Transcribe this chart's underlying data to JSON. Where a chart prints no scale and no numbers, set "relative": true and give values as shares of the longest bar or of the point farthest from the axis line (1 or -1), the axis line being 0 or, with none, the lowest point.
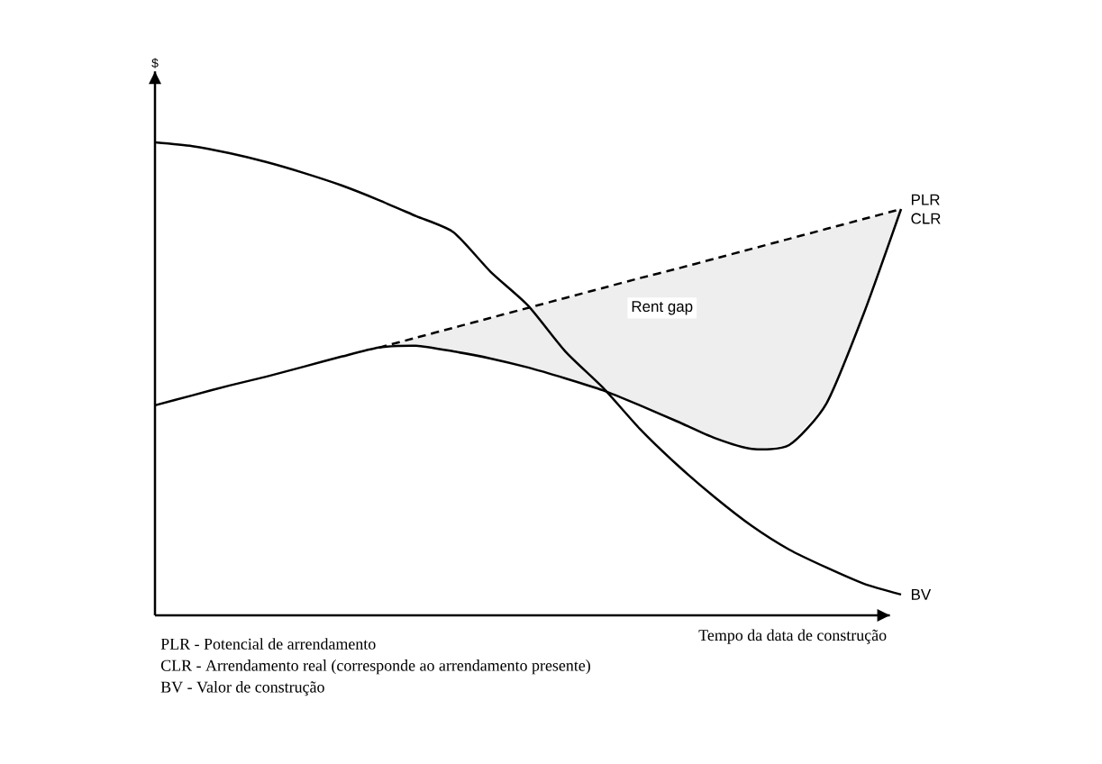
{
  "chart_data": {
    "type": "line",
    "relative": true,
    "xlabel": "Tempo da data de construção",
    "categories": [
      null,
      null,
      null,
      null,
      null,
      null,
      null,
      null,
      null,
      null,
      null,
      null,
      null,
      null,
      null,
      null,
      null,
      null,
      null,
      null,
      null
    ],
    "series": [
      {
        "name": "BV",
        "color": "#000000",
        "line_style": "solid",
        "values": [
          1.0,
          0.992,
          0.977,
          0.958,
          0.935,
          0.909,
          0.878,
          0.844,
          0.81,
          0.726,
          0.655,
          0.558,
          0.482,
          0.394,
          0.318,
          0.25,
          0.189,
          0.139,
          0.101,
          0.067,
          0.044
        ]
      },
      {
        "name": "CLR",
        "color": "#000000",
        "line_style": "solid",
        "values": [
          0.444,
          0.465,
          0.486,
          0.505,
          0.526,
          0.547,
          0.566,
          0.57,
          0.558,
          0.543,
          0.524,
          0.501,
          0.476,
          0.444,
          0.41,
          0.375,
          0.352,
          0.36,
          0.448,
          0.638,
          0.859
        ]
      },
      {
        "name": "PLR",
        "color": "#000000",
        "line_style": "dashed",
        "values": [
          null,
          null,
          null,
          null,
          null,
          null,
          0.566,
          0.587,
          0.608,
          0.629,
          0.65,
          0.671,
          0.692,
          0.713,
          0.733,
          0.754,
          0.775,
          0.796,
          0.817,
          0.838,
          0.859
        ],
        "lower": [
          null,
          null,
          null,
          null,
          null,
          null,
          0.566,
          0.57,
          0.558,
          0.543,
          0.524,
          0.501,
          0.476,
          0.444,
          0.41,
          0.375,
          0.352,
          0.36,
          0.448,
          0.638,
          0.859
        ],
        "upper": [
          null,
          null,
          null,
          null,
          null,
          null,
          0.566,
          0.587,
          0.608,
          0.629,
          0.65,
          0.671,
          0.692,
          0.713,
          0.733,
          0.754,
          0.775,
          0.796,
          0.817,
          0.838,
          0.859
        ]
      }
    ],
    "annotations": [
      "$",
      "Rent gap",
      "PLR - Potencial de arrendamento",
      "CLR - Arrendamento real (corresponde ao arrendamento presente)",
      "BV - Valor de construção"
    ]
  }
}
